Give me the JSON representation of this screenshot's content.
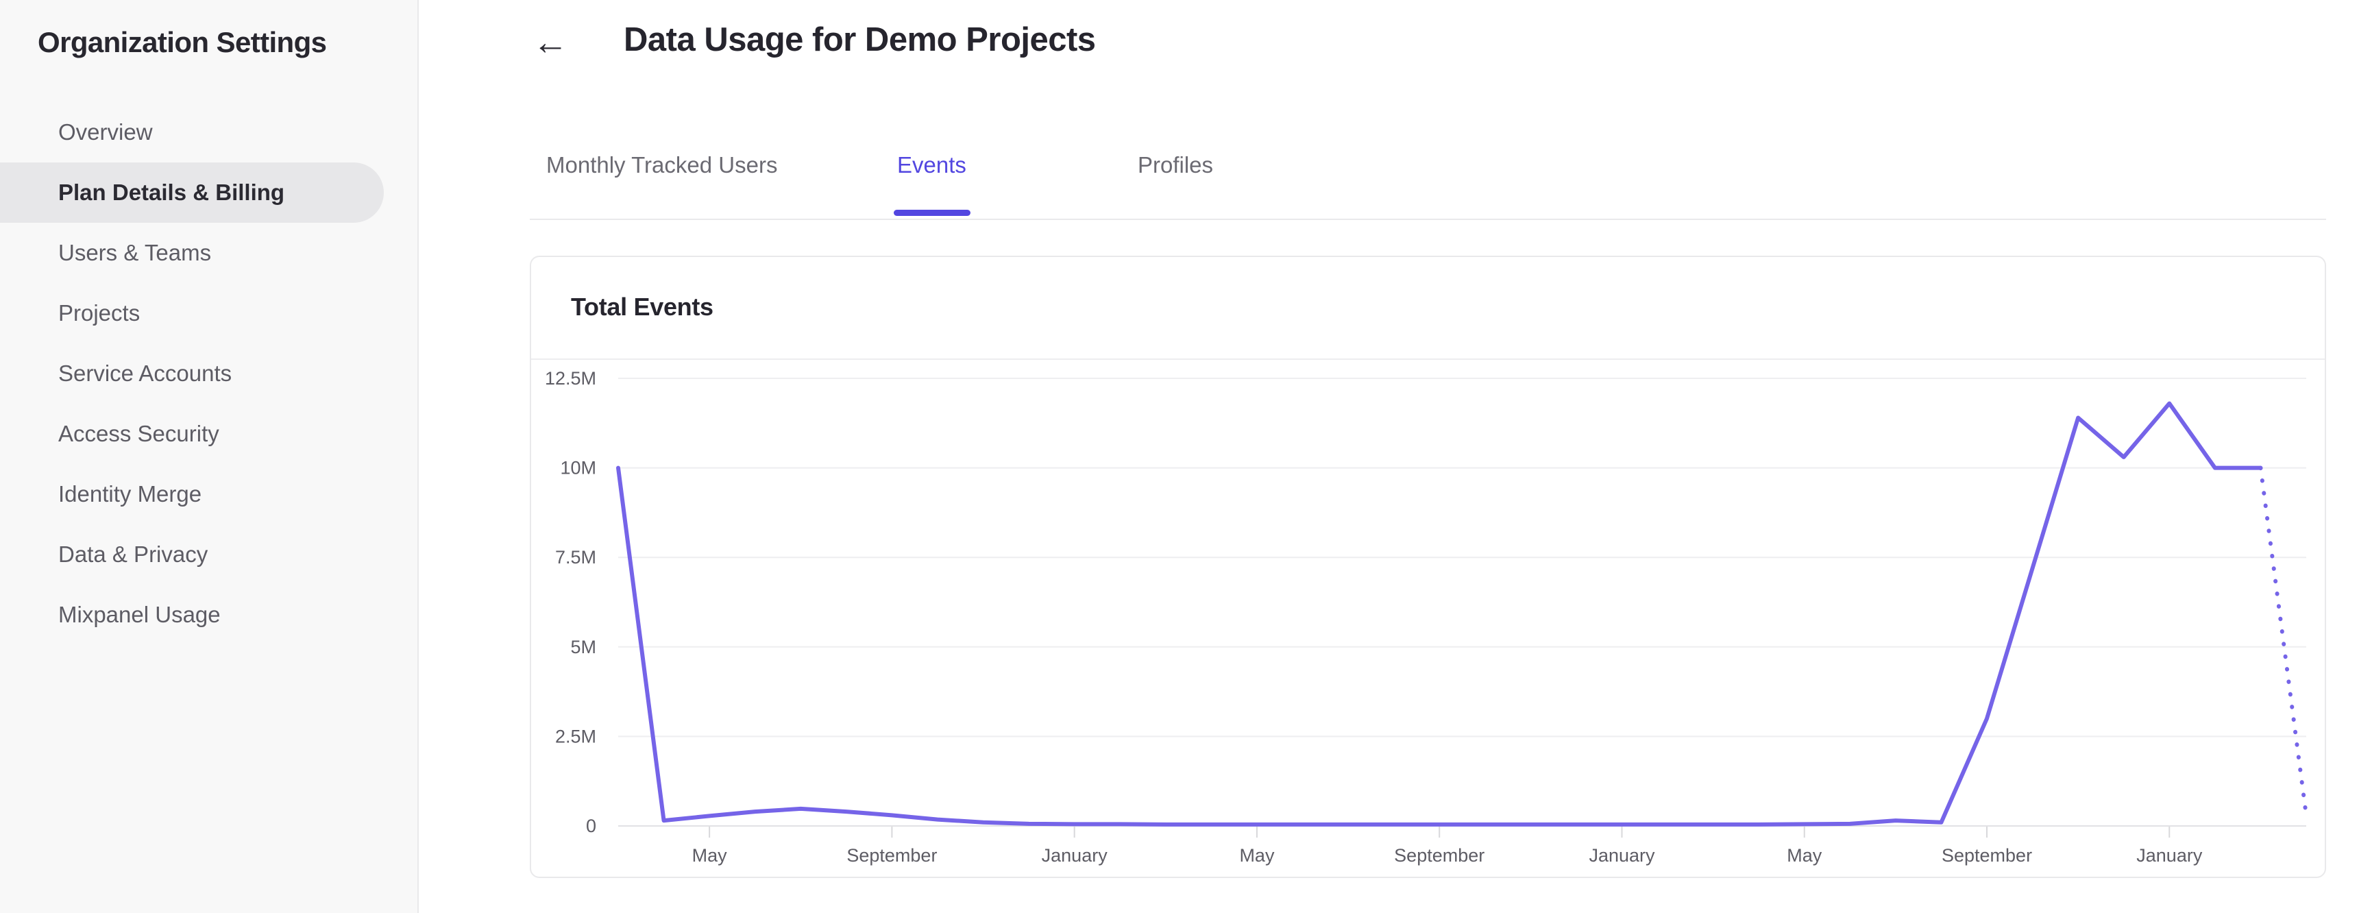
{
  "sidebar": {
    "title": "Organization Settings",
    "items": [
      {
        "label": "Overview",
        "active": false
      },
      {
        "label": "Plan Details & Billing",
        "active": true
      },
      {
        "label": "Users & Teams",
        "active": false
      },
      {
        "label": "Projects",
        "active": false
      },
      {
        "label": "Service Accounts",
        "active": false
      },
      {
        "label": "Access Security",
        "active": false
      },
      {
        "label": "Identity Merge",
        "active": false
      },
      {
        "label": "Data & Privacy",
        "active": false
      },
      {
        "label": "Mixpanel Usage",
        "active": false
      }
    ]
  },
  "header": {
    "back_icon": "←",
    "title": "Data Usage for Demo Projects"
  },
  "tabs": [
    {
      "label": "Monthly Tracked Users",
      "active": false
    },
    {
      "label": "Events",
      "active": true
    },
    {
      "label": "Profiles",
      "active": false
    }
  ],
  "card": {
    "title": "Total Events"
  },
  "colors": {
    "accent": "#5246e0",
    "line": "#7564e8",
    "grid": "#eeeef0",
    "axis": "#e2e2e5",
    "tick": "#d8d8db",
    "axis_text": "#5d5c64",
    "sidebar_bg": "#f8f8f8",
    "active_pill": "#e7e7e9",
    "dark_text": "#26252e"
  },
  "chart_data": {
    "type": "line",
    "title": "Total Events",
    "unit": "events per month",
    "x_tick_labels": [
      "May",
      "September",
      "January",
      "May",
      "September",
      "January",
      "May",
      "September",
      "January"
    ],
    "x_tick_indices": [
      2,
      6,
      10,
      14,
      18,
      22,
      26,
      30,
      34
    ],
    "monthly_points": 38,
    "first_point_month": "March",
    "y_tick_labels": [
      "0",
      "2.5M",
      "5M",
      "7.5M",
      "10M",
      "12.5M"
    ],
    "ylim_millions": [
      0,
      12.5
    ],
    "values_millions": [
      10,
      0.15,
      0.28,
      0.4,
      0.48,
      0.4,
      0.3,
      0.18,
      0.1,
      0.06,
      0.05,
      0.05,
      0.04,
      0.04,
      0.04,
      0.04,
      0.04,
      0.04,
      0.04,
      0.04,
      0.04,
      0.04,
      0.04,
      0.04,
      0.04,
      0.04,
      0.05,
      0.06,
      0.15,
      0.1,
      3,
      7.2,
      11.4,
      10.3,
      11.8,
      10,
      10,
      0.3
    ],
    "last_segment_dotted": true,
    "line_color": "#7564e8",
    "grid": true,
    "legend": "none"
  }
}
